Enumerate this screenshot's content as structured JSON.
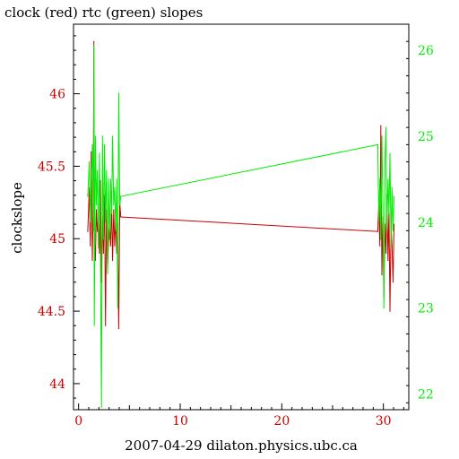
{
  "chart_data": {
    "type": "line",
    "title": "clock (red) rtc (green) slopes",
    "xlabel": "2007-04-29 dilaton.physics.ubc.ca",
    "ylabel": "clockslope",
    "xlim": [
      -0.5,
      32.5
    ],
    "ylim": [
      43.82,
      46.48
    ],
    "y2lim": [
      21.82,
      26.3
    ],
    "x_ticks": [
      0,
      10,
      20,
      30
    ],
    "y_ticks": [
      44,
      44.5,
      45,
      45.5,
      46
    ],
    "y2_ticks": [
      22,
      23,
      24,
      25,
      26
    ],
    "x_tick_labels": [
      "0",
      "10",
      "20",
      "30"
    ],
    "y_tick_labels": [
      "44",
      "44.5",
      "45",
      "45.5",
      "46"
    ],
    "y2_tick_labels": [
      "22",
      "23",
      "24",
      "25",
      "26"
    ],
    "colors": {
      "axis": "#000000",
      "clock": "#cc0000",
      "rtc": "#00ee00"
    },
    "series": [
      {
        "name": "clock",
        "axis": "left",
        "color": "#cc0000",
        "x": [
          0.9,
          1.05,
          1.15,
          1.25,
          1.35,
          1.45,
          1.5,
          1.55,
          1.65,
          1.75,
          1.85,
          1.95,
          2.05,
          2.15,
          2.25,
          2.35,
          2.45,
          2.55,
          2.65,
          2.75,
          2.85,
          2.95,
          3.05,
          3.15,
          3.25,
          3.35,
          3.45,
          3.55,
          3.65,
          3.75,
          3.85,
          3.95,
          4.05,
          4.15,
          29.45,
          29.55,
          29.65,
          29.75,
          29.85,
          29.95,
          30.05,
          30.15,
          30.25,
          30.35,
          30.45,
          30.55,
          30.65,
          30.75,
          30.85,
          30.95,
          31.05
        ],
        "y": [
          45.05,
          45.35,
          44.95,
          45.6,
          44.85,
          45.3,
          46.36,
          45.0,
          44.85,
          45.2,
          45.05,
          45.15,
          44.9,
          45.4,
          44.7,
          45.15,
          44.9,
          45.3,
          44.4,
          45.2,
          44.8,
          45.0,
          45.1,
          44.95,
          45.25,
          44.85,
          45.2,
          44.95,
          45.15,
          44.9,
          45.1,
          44.38,
          45.25,
          45.15,
          45.05,
          45.25,
          44.95,
          45.78,
          44.75,
          45.15,
          44.6,
          45.1,
          44.9,
          45.3,
          44.85,
          45.2,
          44.5,
          45.1,
          44.95,
          44.7,
          45.1
        ]
      },
      {
        "name": "rtc",
        "axis": "right",
        "color": "#00ee00",
        "x": [
          0.9,
          1.05,
          1.15,
          1.25,
          1.35,
          1.45,
          1.5,
          1.55,
          1.65,
          1.75,
          1.85,
          1.95,
          2.05,
          2.15,
          2.25,
          2.35,
          2.45,
          2.55,
          2.65,
          2.75,
          2.85,
          2.95,
          3.05,
          3.15,
          3.25,
          3.35,
          3.45,
          3.55,
          3.65,
          3.75,
          3.85,
          3.95,
          4.05,
          4.15,
          29.45,
          29.55,
          29.65,
          29.75,
          29.85,
          29.95,
          30.05,
          30.15,
          30.25,
          30.35,
          30.45,
          30.55,
          30.65,
          30.75,
          30.85,
          30.95,
          31.05
        ],
        "y": [
          24.3,
          24.7,
          24.0,
          24.5,
          24.9,
          23.9,
          26.05,
          22.8,
          25.0,
          24.2,
          24.6,
          23.7,
          24.8,
          23.8,
          21.85,
          25.0,
          23.8,
          24.9,
          24.0,
          24.6,
          23.4,
          24.5,
          23.8,
          24.5,
          24.1,
          25.0,
          24.2,
          24.4,
          23.9,
          24.5,
          23.0,
          25.5,
          24.2,
          24.3,
          24.9,
          24.0,
          24.5,
          23.8,
          25.0,
          24.2,
          23.0,
          24.7,
          25.1,
          23.9,
          24.5,
          24.1,
          24.8,
          23.7,
          24.4,
          23.9,
          24.3
        ]
      }
    ]
  }
}
